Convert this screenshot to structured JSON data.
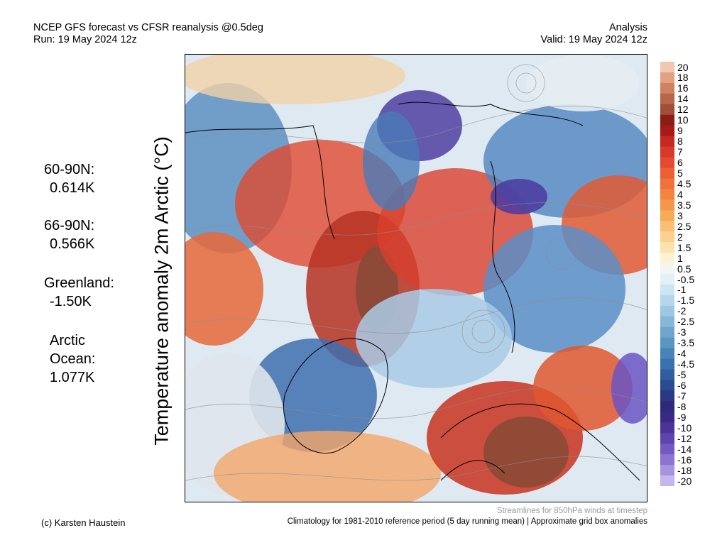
{
  "header": {
    "title": "NCEP GFS forecast vs CFSR reanalysis @0.5deg",
    "run": "Run: 19 May 2024 12z",
    "analysis": "Analysis",
    "valid": "Valid: 19 May 2024 12z"
  },
  "stats": [
    {
      "label": "60-90N:",
      "value": "0.614K"
    },
    {
      "label": "66-90N:",
      "value": "0.566K"
    },
    {
      "label": "Greenland:",
      "value": "-1.50K"
    },
    {
      "label": "Arctic",
      "label2": "Ocean:",
      "value": "1.077K"
    }
  ],
  "vertical_label": "Temperature anomaly 2m Arctic (°C)",
  "colorbar": {
    "ticks": [
      "20",
      "18",
      "16",
      "14",
      "12",
      "10",
      "9",
      "8",
      "7",
      "6",
      "5",
      "4.5",
      "4",
      "3.5",
      "3",
      "2.5",
      "2",
      "1.5",
      "1",
      "0.5",
      "-0.5",
      "-1",
      "-1.5",
      "-2",
      "-2.5",
      "-3",
      "-3.5",
      "-4",
      "-4.5",
      "-5",
      "-6",
      "-7",
      "-8",
      "-9",
      "-10",
      "-12",
      "-14",
      "-16",
      "-18",
      "-20"
    ],
    "colors": [
      "#f2c6b0",
      "#e3a183",
      "#cf8160",
      "#b8654a",
      "#a14e38",
      "#8c1d16",
      "#a81a18",
      "#c42a22",
      "#d9382c",
      "#e44a32",
      "#ec5e35",
      "#f0713a",
      "#f3843f",
      "#f59749",
      "#f7ab5a",
      "#f9bf72",
      "#fad28e",
      "#fbe3ad",
      "#fcf1d2",
      "#f4f4f4",
      "#e4f0f8",
      "#cde4f2",
      "#b5d6eb",
      "#9dc7e2",
      "#86b7d8",
      "#70a6cd",
      "#5b95c2",
      "#4984b8",
      "#3a72ad",
      "#2e5fa0",
      "#2a4a92",
      "#2a3784",
      "#2d2a7a",
      "#3a2a86",
      "#4b3398",
      "#5e45ae",
      "#7459c2",
      "#8d74d2",
      "#a893e0",
      "#c5b6ec"
    ]
  },
  "footer": {
    "credit": "(c) Karsten Haustein",
    "streamlines_note": "Streamlines for 850hPa winds at timestep",
    "climatology_note": "Climatology for 1981-2010 reference period (5 day running mean) | Approximate grid box anomalies"
  }
}
